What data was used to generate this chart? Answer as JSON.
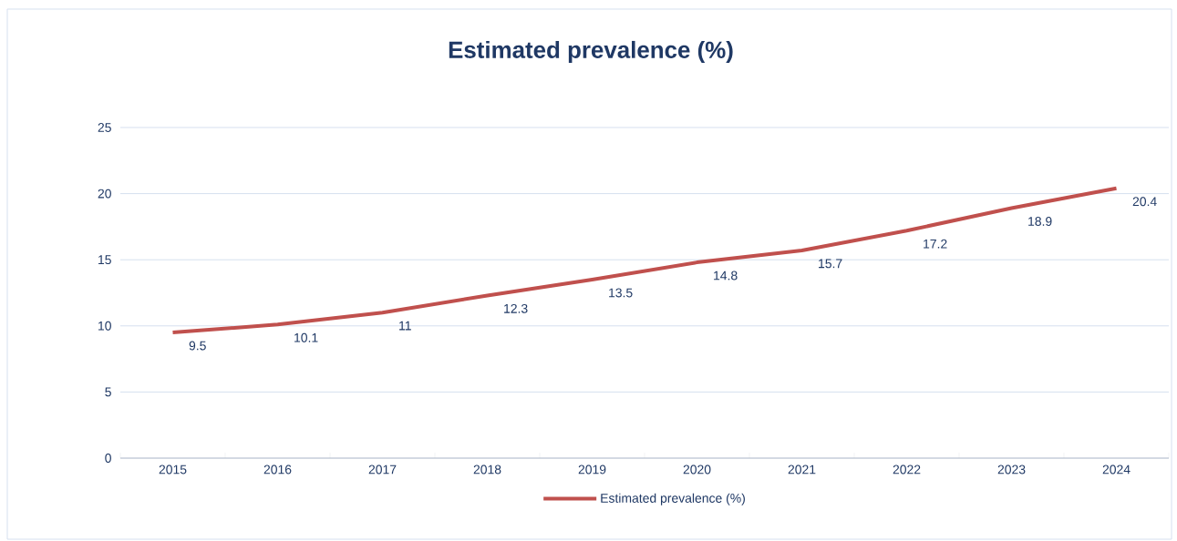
{
  "chart_data": {
    "type": "line",
    "title": "Estimated prevalence (%)",
    "categories": [
      "2015",
      "2016",
      "2017",
      "2018",
      "2019",
      "2020",
      "2021",
      "2022",
      "2023",
      "2024"
    ],
    "series": [
      {
        "name": "Estimated prevalence (%)",
        "color": "#c0504d",
        "values": [
          9.5,
          10.1,
          11,
          12.3,
          13.5,
          14.8,
          15.7,
          17.2,
          18.9,
          20.4
        ]
      }
    ],
    "ylim": [
      0,
      25
    ],
    "yticks": [
      0,
      5,
      10,
      15,
      20,
      25
    ],
    "grid": "y",
    "legend": "bottom",
    "data_labels": true,
    "marker": "none",
    "line_style": "solid"
  }
}
